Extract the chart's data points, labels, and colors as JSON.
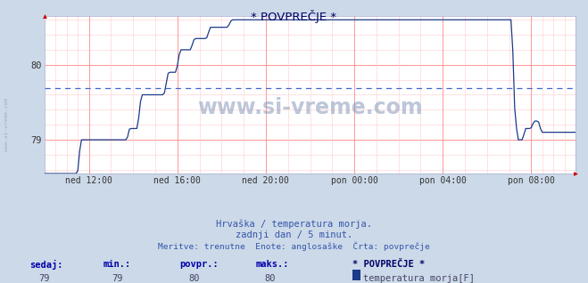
{
  "title": "* POVPREČJE *",
  "subtitle1": "Hrvaška / temperatura morja.",
  "subtitle2": "zadnji dan / 5 minut.",
  "subtitle3": "Meritve: trenutne  Enote: anglosaške  Črta: povprečje",
  "bg_color": "#ccd9e8",
  "plot_bg_color": "#ffffff",
  "line_color": "#1a3a8a",
  "grid_major_color": "#ff8888",
  "grid_minor_color": "#ffcccc",
  "dashed_line_value": 79.69,
  "dashed_line_color": "#4466cc",
  "ylim_low": 78.55,
  "ylim_high": 80.65,
  "ytick_vals": [
    79,
    80
  ],
  "title_color": "#000066",
  "subtitle_color": "#3355aa",
  "stats_label_color": "#0000aa",
  "stats_value_color": "#444466",
  "watermark_text": "www.si-vreme.com",
  "watermark_color": "#8899bb",
  "sidebar_text": "www.si-vreme.com",
  "sidebar_color": "#8899bb",
  "legend_title": "* POVPREČJE *",
  "legend_label": "temperatura morja[F]",
  "legend_box_color": "#1a3a8a",
  "stats_labels": [
    "sedaj:",
    "min.:",
    "povpr.:",
    "maks.:"
  ],
  "stats_values": [
    "79",
    "79",
    "80",
    "80"
  ],
  "x_tick_labels": [
    "ned 12:00",
    "ned 16:00",
    "ned 20:00",
    "pon 00:00",
    "pon 04:00",
    "pon 08:00"
  ],
  "x_tick_norm": [
    0.0833,
    0.25,
    0.4167,
    0.5833,
    0.75,
    0.9167
  ]
}
